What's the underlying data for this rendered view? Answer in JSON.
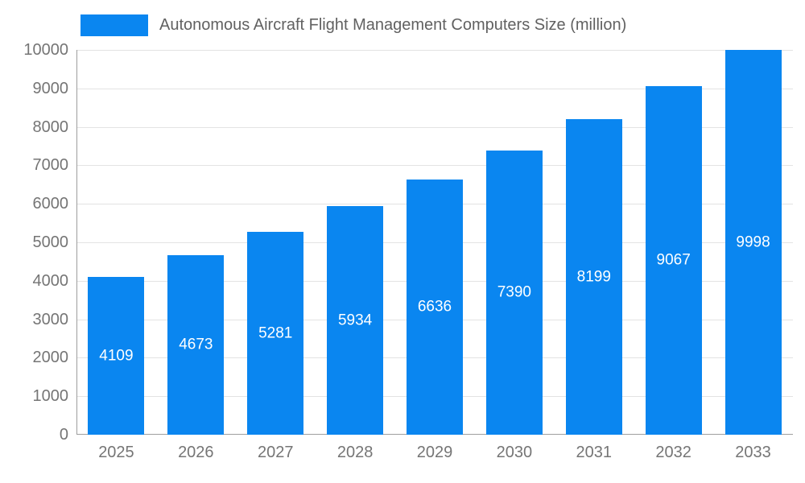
{
  "chart_data": {
    "type": "bar",
    "title": "Autonomous Aircraft Flight Management Computers Size (million)",
    "categories": [
      "2025",
      "2026",
      "2027",
      "2028",
      "2029",
      "2030",
      "2031",
      "2032",
      "2033"
    ],
    "values": [
      4109,
      4673,
      5281,
      5934,
      6636,
      7390,
      8199,
      9067,
      9998
    ],
    "xlabel": "",
    "ylabel": "",
    "ylim": [
      0,
      10000
    ],
    "ytick_step": 1000,
    "grid": "horizontal",
    "legend_position": "top-left",
    "value_label_style": "white-centered-inside-bar"
  },
  "colors": {
    "bar": "#0a86f0",
    "gridline": "#e3e3e3",
    "axis_line": "#9e9e9e",
    "axis_text": "#757575",
    "title_text": "#616161",
    "value_text": "#ffffff",
    "background": "#ffffff"
  }
}
